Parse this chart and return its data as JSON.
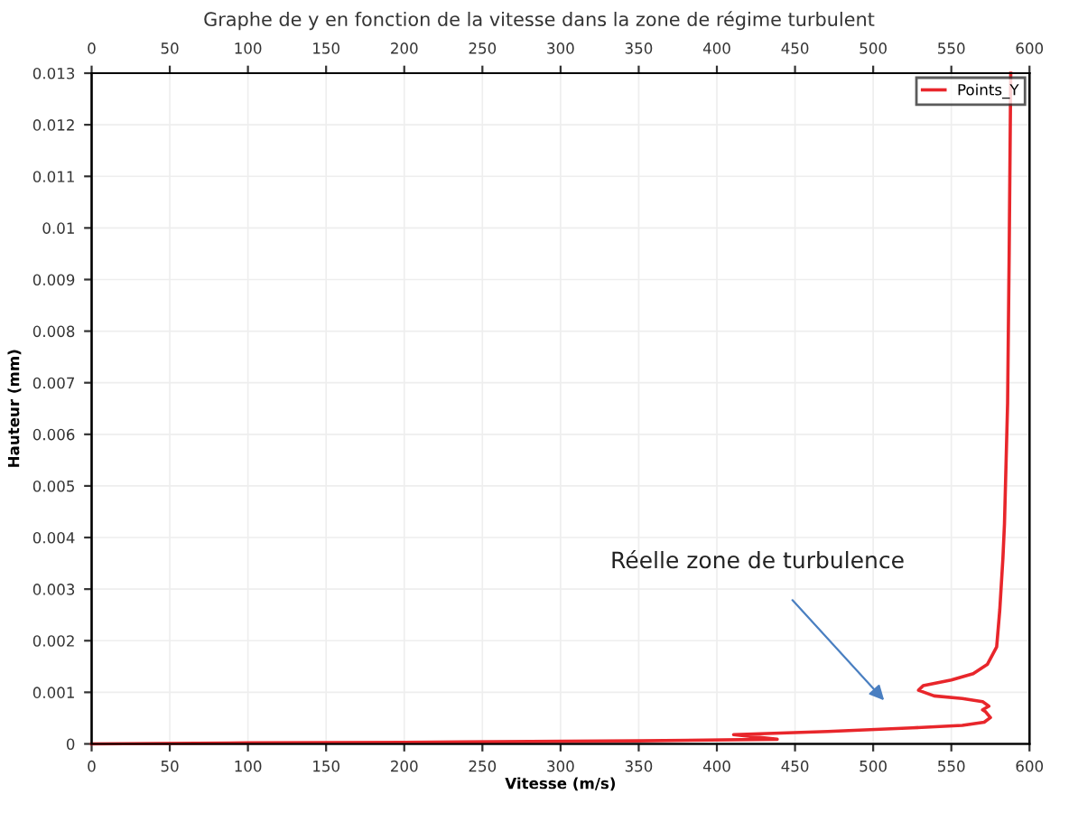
{
  "chart_data": {
    "type": "line",
    "title": "Graphe de y en fonction de la vitesse dans la zone de régime turbulent",
    "xlabel": "Vitesse (m/s)",
    "ylabel": "Hauteur (mm)",
    "series": [
      {
        "name": "Points_Y",
        "color": "#e8262b",
        "x": [
          0,
          100,
          200,
          350,
          438.6,
          410.7,
          471,
          525,
          557,
          571,
          575,
          572,
          570,
          574,
          570,
          557,
          539,
          529,
          532,
          550,
          564,
          573,
          579,
          581,
          583,
          584,
          586,
          587,
          588
        ],
        "values": [
          0,
          2e-05,
          3e-05,
          6e-05,
          9e-05,
          0.00018,
          0.00024,
          0.00031,
          0.00036,
          0.00042,
          0.00051,
          0.00062,
          0.00066,
          0.00073,
          0.00082,
          0.00088,
          0.00093,
          0.00104,
          0.00113,
          0.00124,
          0.00136,
          0.00154,
          0.00188,
          0.0026,
          0.0036,
          0.00427,
          0.0066,
          0.0095,
          0.013
        ]
      }
    ],
    "xlim": [
      0,
      600
    ],
    "xticks": [
      0,
      50,
      100,
      150,
      200,
      250,
      300,
      350,
      400,
      450,
      500,
      550,
      600
    ],
    "x2lim": [
      0,
      600
    ],
    "x2ticks": [
      0,
      50,
      100,
      150,
      200,
      250,
      300,
      350,
      400,
      450,
      500,
      550,
      600
    ],
    "ylim": [
      0,
      0.013
    ],
    "yticks": [
      0,
      0.001,
      0.002,
      0.003,
      0.004,
      0.005,
      0.006,
      0.007,
      0.008,
      0.009,
      0.01,
      0.011,
      0.012,
      0.013
    ],
    "annotations": [
      "Réelle zone de turbulence"
    ],
    "grid": true,
    "legend": "top right",
    "marker": "none",
    "line_style": "solid"
  }
}
